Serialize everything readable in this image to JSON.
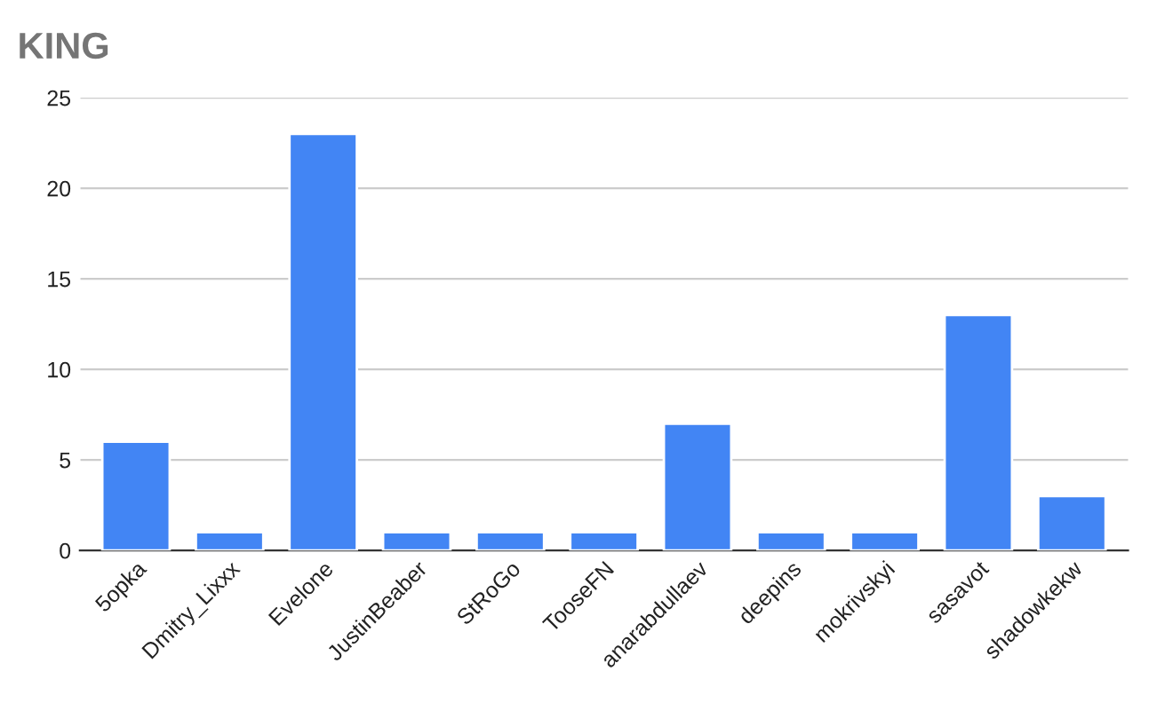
{
  "chart_data": {
    "type": "bar",
    "title": "KING",
    "categories": [
      "5opka",
      "Dmitry_Lixxx",
      "Evelone",
      "JustinBeaber",
      "StRoGo",
      "TooseFN",
      "anarabdullaev",
      "deepins",
      "mokrivskyi",
      "sasavot",
      "shadowkekw"
    ],
    "values": [
      6,
      1,
      23,
      1,
      1,
      1,
      7,
      1,
      1,
      13,
      3
    ],
    "color": "#4285f4",
    "ylim": [
      0,
      25
    ],
    "yticks": [
      0,
      5,
      10,
      15,
      20,
      25
    ],
    "grid": "y"
  }
}
